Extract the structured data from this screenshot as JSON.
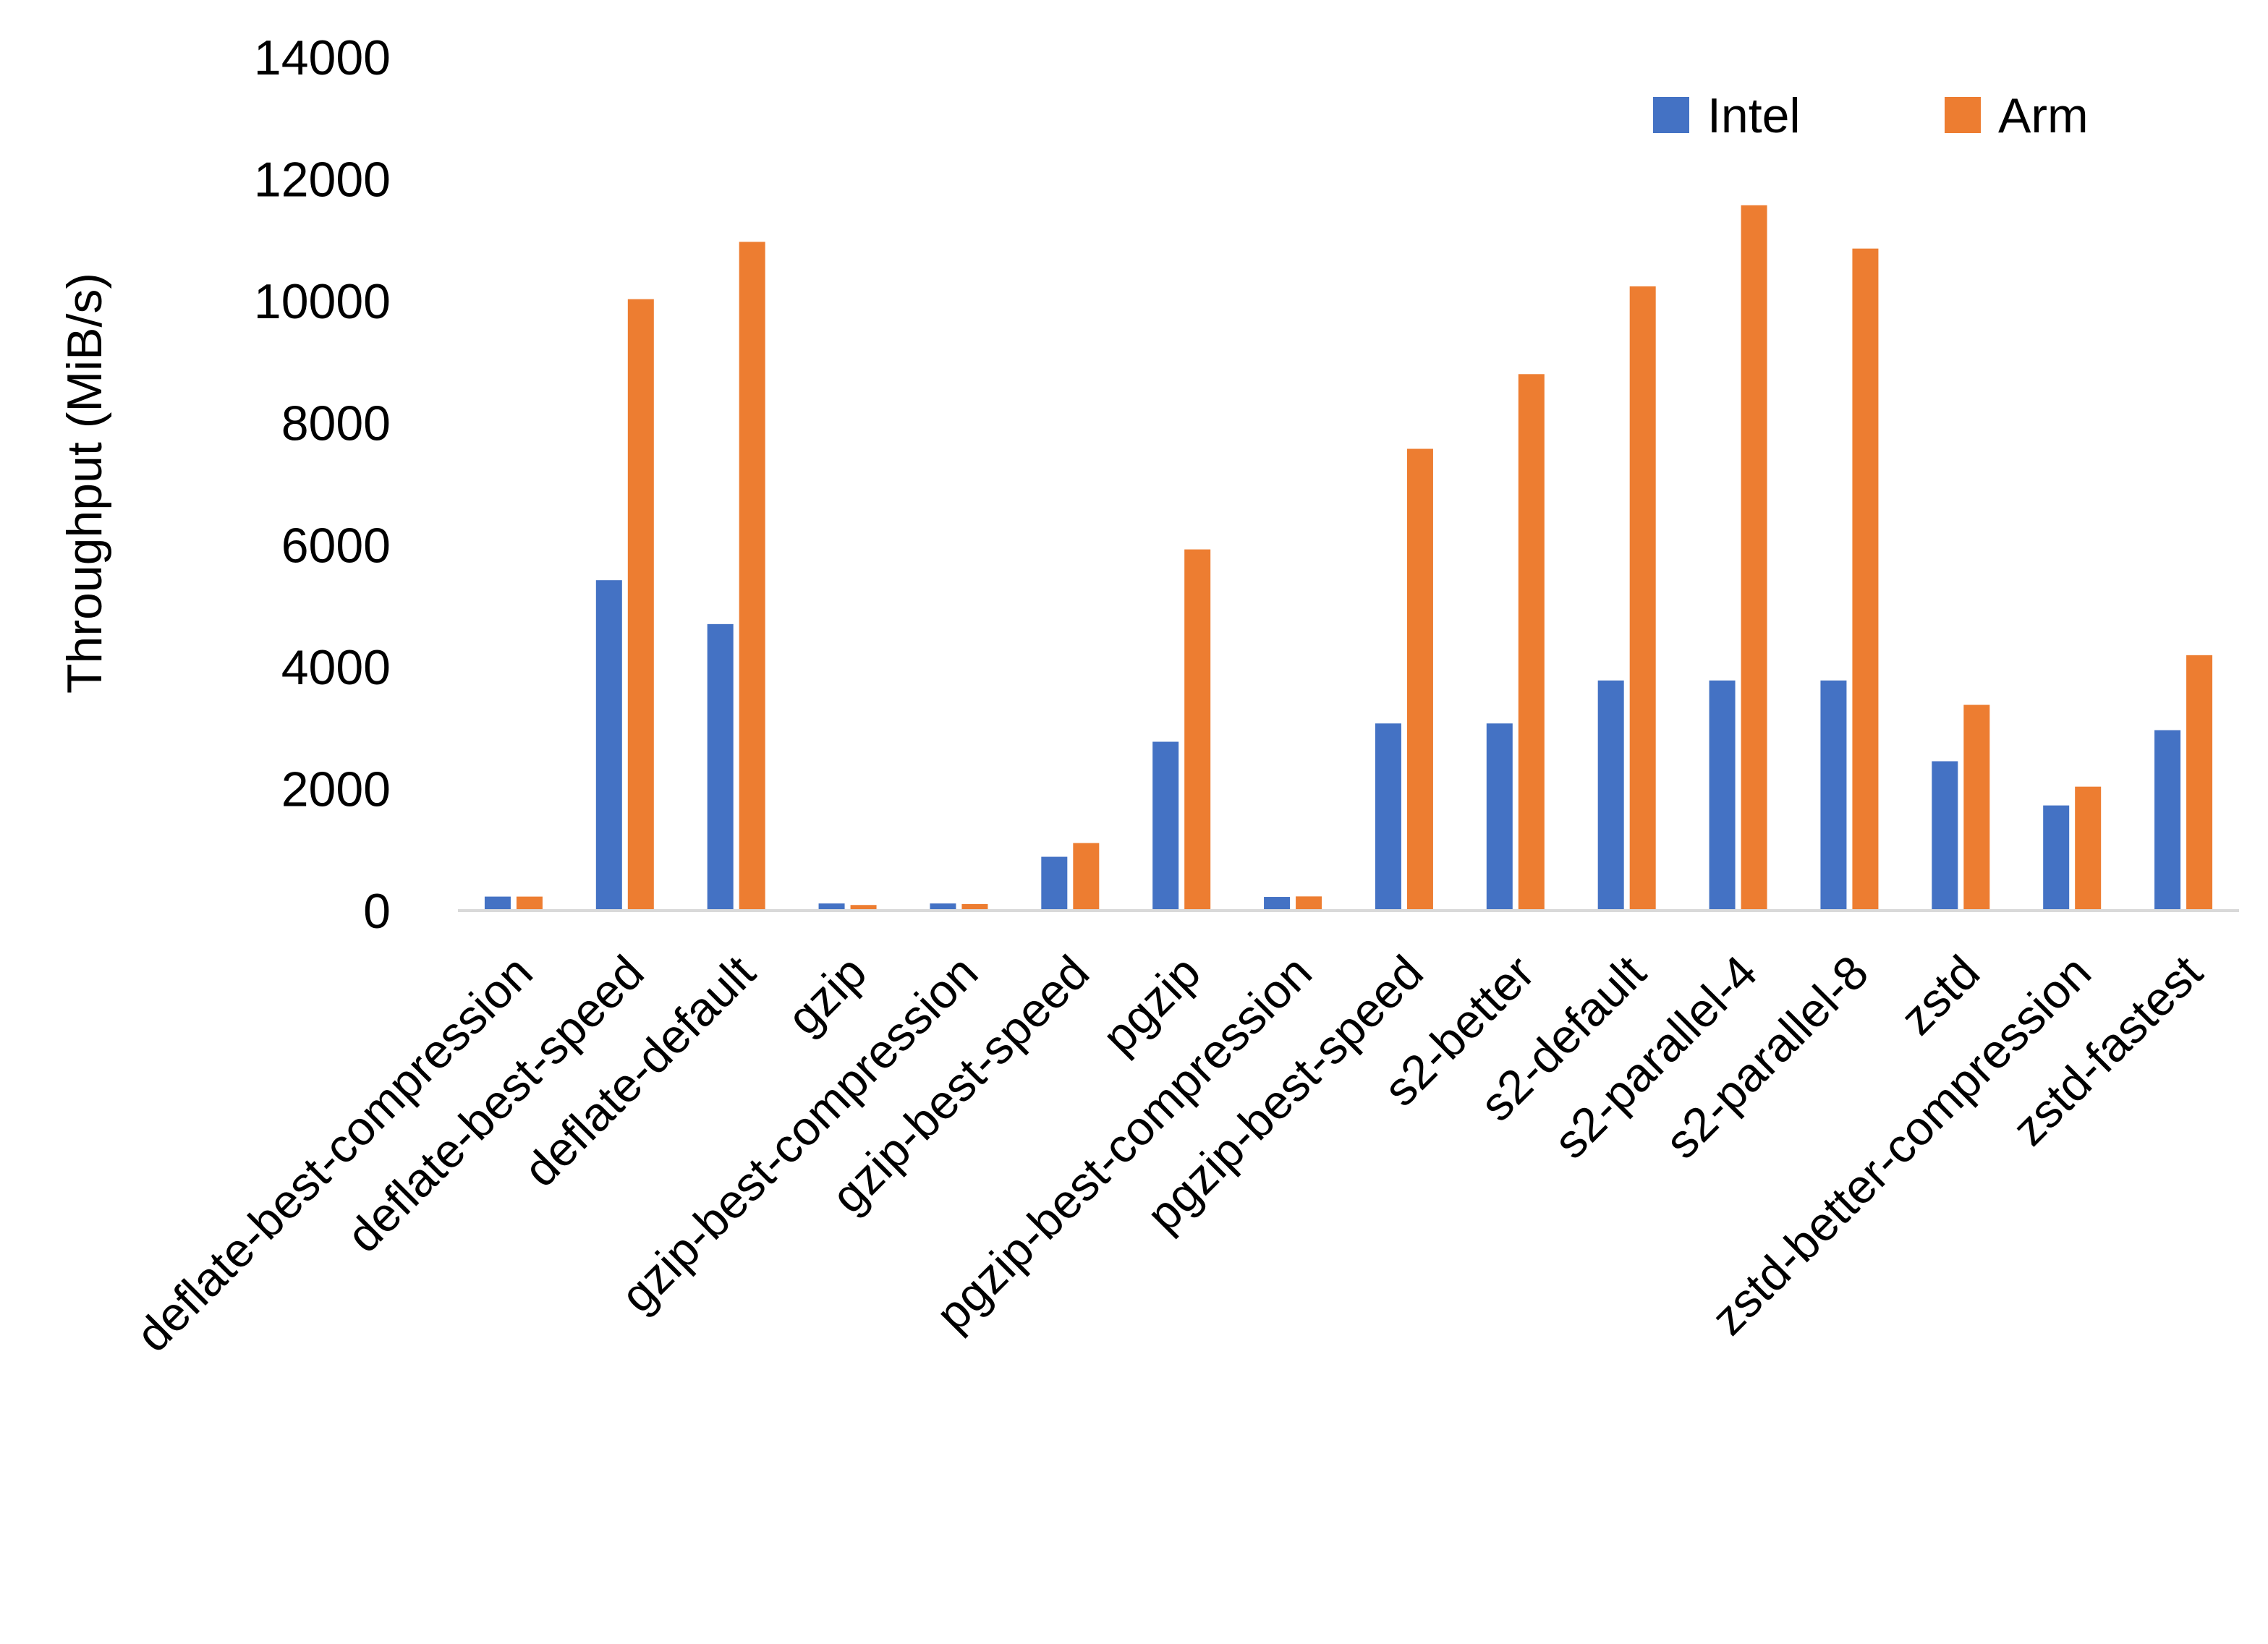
{
  "chart_data": {
    "type": "bar",
    "title": "",
    "xlabel": "",
    "ylabel": "Throughput (MiB/s)",
    "ylim": [
      0,
      14000
    ],
    "yticks": [
      0,
      2000,
      4000,
      6000,
      8000,
      10000,
      12000,
      14000
    ],
    "grid": false,
    "legend_position": "top-right",
    "categories": [
      "deflate-best-compression",
      "deflate-best-speed",
      "deflate-default",
      "gzip",
      "gzip-best-compression",
      "gzip-best-speed",
      "pgzip",
      "pgzip-best-compression",
      "pgzip-best-speed",
      "s2-better",
      "s2-default",
      "s2-parallel-4",
      "s2-parallel-8",
      "zstd",
      "zstd-better-compression",
      "zstd-fastest"
    ],
    "series": [
      {
        "name": "Intel",
        "color": "#4472C4",
        "values": [
          230,
          5420,
          4700,
          117,
          117,
          883,
          2770,
          225,
          3070,
          3070,
          3775,
          3775,
          3775,
          2450,
          1725,
          2960
        ]
      },
      {
        "name": "Arm",
        "color": "#ED7D31",
        "values": [
          230,
          10030,
          10970,
          92,
          108,
          1108,
          5925,
          233,
          7575,
          8800,
          10240,
          11570,
          10860,
          3375,
          2033,
          4190
        ]
      }
    ]
  }
}
